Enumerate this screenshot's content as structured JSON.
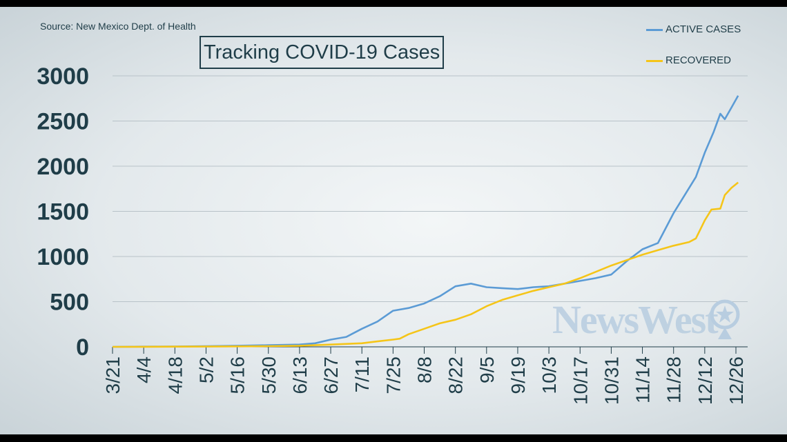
{
  "source_text": "Source: New Mexico Dept. of Health",
  "title": "Tracking COVID-19 Cases",
  "watermark": "NewsWest",
  "colors": {
    "active": "#5b9bd5",
    "recovered": "#f5c518",
    "grid": "#b8c2c8",
    "text": "#1f3d48"
  },
  "chart_data": {
    "type": "line",
    "title": "Tracking COVID-19 Cases",
    "xlabel": "",
    "ylabel": "",
    "ylim": [
      0,
      3000
    ],
    "yticks": [
      "0",
      "500",
      "1000",
      "1500",
      "2000",
      "2500",
      "3000"
    ],
    "xticks": [
      "3/21",
      "4/4",
      "4/18",
      "5/2",
      "5/16",
      "5/30",
      "6/13",
      "6/27",
      "7/11",
      "7/25",
      "8/8",
      "8/22",
      "9/5",
      "9/19",
      "10/3",
      "10/17",
      "10/31",
      "11/14",
      "11/28",
      "12/12",
      "12/26"
    ],
    "grid": "horizontal",
    "legend_position": "top-right",
    "x_unit": "days since 3/21",
    "series": [
      {
        "name": "ACTIVE CASES",
        "color": "#5b9bd5",
        "points": [
          [
            0,
            0
          ],
          [
            14,
            2
          ],
          [
            28,
            4
          ],
          [
            42,
            8
          ],
          [
            56,
            12
          ],
          [
            70,
            18
          ],
          [
            84,
            25
          ],
          [
            91,
            40
          ],
          [
            98,
            80
          ],
          [
            105,
            110
          ],
          [
            112,
            200
          ],
          [
            119,
            280
          ],
          [
            126,
            400
          ],
          [
            133,
            430
          ],
          [
            140,
            480
          ],
          [
            147,
            560
          ],
          [
            154,
            670
          ],
          [
            161,
            700
          ],
          [
            168,
            660
          ],
          [
            175,
            650
          ],
          [
            182,
            640
          ],
          [
            189,
            660
          ],
          [
            196,
            670
          ],
          [
            203,
            700
          ],
          [
            210,
            730
          ],
          [
            217,
            760
          ],
          [
            224,
            800
          ],
          [
            231,
            950
          ],
          [
            238,
            1080
          ],
          [
            245,
            1150
          ],
          [
            252,
            1480
          ],
          [
            259,
            1760
          ],
          [
            262,
            1880
          ],
          [
            266,
            2150
          ],
          [
            270,
            2380
          ],
          [
            273,
            2580
          ],
          [
            275,
            2520
          ],
          [
            278,
            2650
          ],
          [
            281,
            2780
          ]
        ]
      },
      {
        "name": "RECOVERED",
        "color": "#f5c518",
        "points": [
          [
            0,
            0
          ],
          [
            14,
            1
          ],
          [
            28,
            2
          ],
          [
            42,
            3
          ],
          [
            56,
            5
          ],
          [
            70,
            8
          ],
          [
            84,
            12
          ],
          [
            98,
            25
          ],
          [
            112,
            40
          ],
          [
            119,
            60
          ],
          [
            126,
            80
          ],
          [
            129,
            90
          ],
          [
            133,
            140
          ],
          [
            140,
            200
          ],
          [
            147,
            260
          ],
          [
            154,
            300
          ],
          [
            161,
            360
          ],
          [
            168,
            450
          ],
          [
            175,
            520
          ],
          [
            182,
            570
          ],
          [
            189,
            620
          ],
          [
            196,
            660
          ],
          [
            203,
            700
          ],
          [
            210,
            760
          ],
          [
            217,
            830
          ],
          [
            224,
            900
          ],
          [
            231,
            960
          ],
          [
            238,
            1020
          ],
          [
            245,
            1070
          ],
          [
            252,
            1120
          ],
          [
            259,
            1160
          ],
          [
            262,
            1200
          ],
          [
            266,
            1400
          ],
          [
            269,
            1520
          ],
          [
            273,
            1530
          ],
          [
            275,
            1680
          ],
          [
            278,
            1760
          ],
          [
            281,
            1820
          ]
        ]
      }
    ]
  }
}
